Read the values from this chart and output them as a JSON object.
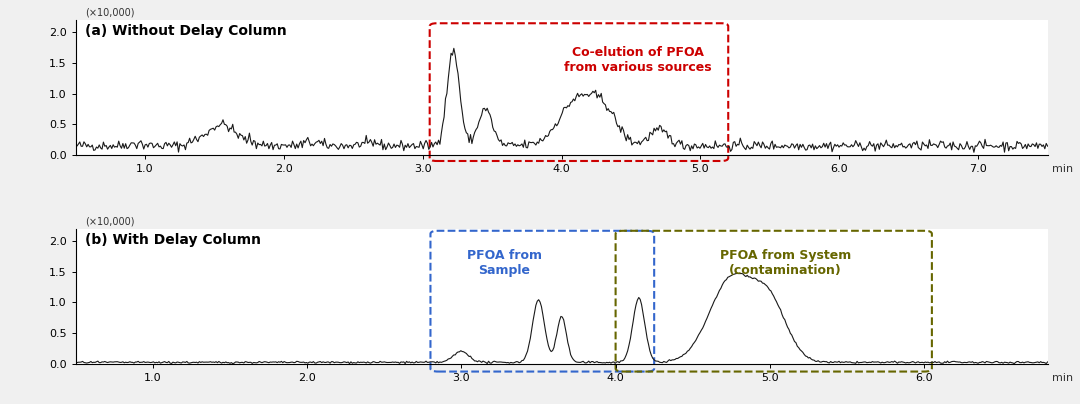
{
  "fig_width": 10.8,
  "fig_height": 4.04,
  "dpi": 100,
  "bg_color": "#f0f0f0",
  "panel_bg": "#ffffff",
  "title_a": "(a) Without Delay Column",
  "title_b": "(b) With Delay Column",
  "ylabel_scale": "(×10,000)",
  "xlabel": "min",
  "yticks": [
    0.0,
    0.5,
    1.0,
    1.5,
    2.0
  ],
  "xticks_a": [
    1.0,
    2.0,
    3.0,
    4.0,
    5.0,
    6.0,
    7.0
  ],
  "xticks_b": [
    1.0,
    2.0,
    3.0,
    4.0,
    5.0,
    6.0
  ],
  "xlim_a": [
    0.5,
    7.5
  ],
  "xlim_b": [
    0.5,
    6.8
  ],
  "ylim": [
    0.0,
    2.2
  ],
  "annotation_a_text": "Co-elution of PFOA\nfrom various sources",
  "annotation_a_color": "#cc0000",
  "annotation_b1_text": "PFOA from\nSample",
  "annotation_b1_color": "#3366cc",
  "annotation_b2_text": "PFOA from System\n(contamination)",
  "annotation_b2_color": "#666600",
  "line_color": "#1a1a1a",
  "line_width": 0.8,
  "hspace": 0.55
}
